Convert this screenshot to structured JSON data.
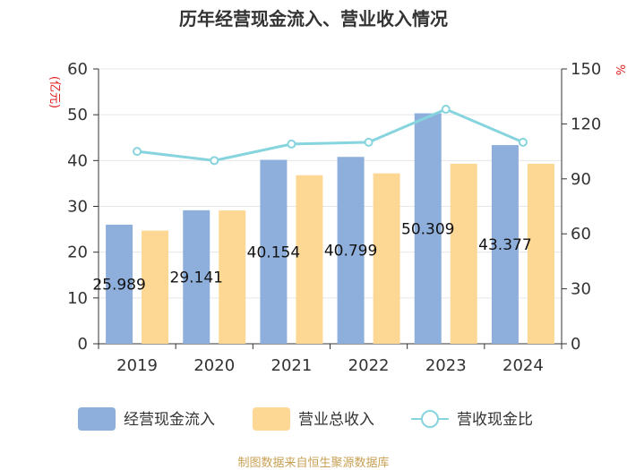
{
  "chart_data": {
    "type": "bar",
    "title": "历年经营现金流入、营业收入情况",
    "categories": [
      "2019",
      "2020",
      "2021",
      "2022",
      "2023",
      "2024"
    ],
    "y_left": {
      "unit": "(亿元)",
      "ylim": [
        0,
        60
      ],
      "ticks": [
        "0",
        "10",
        "20",
        "30",
        "40",
        "50",
        "60"
      ]
    },
    "y_right": {
      "unit": "%",
      "ylim": [
        0,
        150
      ],
      "ticks": [
        "0",
        "30",
        "60",
        "90",
        "120",
        "150"
      ]
    },
    "series": [
      {
        "name": "经营现金流入",
        "kind": "bar",
        "axis": "left",
        "color": "#8eaedb",
        "values": [
          25.989,
          29.141,
          40.154,
          40.799,
          50.309,
          43.377
        ],
        "labels": [
          "25.989",
          "29.141",
          "40.154",
          "40.799",
          "50.309",
          "43.377"
        ]
      },
      {
        "name": "营业总收入",
        "kind": "bar",
        "axis": "left",
        "color": "#fdd794",
        "values": [
          24.7,
          29.1,
          36.8,
          37.2,
          39.3,
          39.3
        ]
      },
      {
        "name": "营收现金比",
        "kind": "line",
        "axis": "right",
        "color": "#86d4de",
        "values": [
          105,
          100,
          109,
          110,
          128,
          110
        ]
      }
    ],
    "grid": true,
    "legend_position": "bottom"
  },
  "footer": {
    "source": "制图数据来自恒生聚源数据库"
  }
}
